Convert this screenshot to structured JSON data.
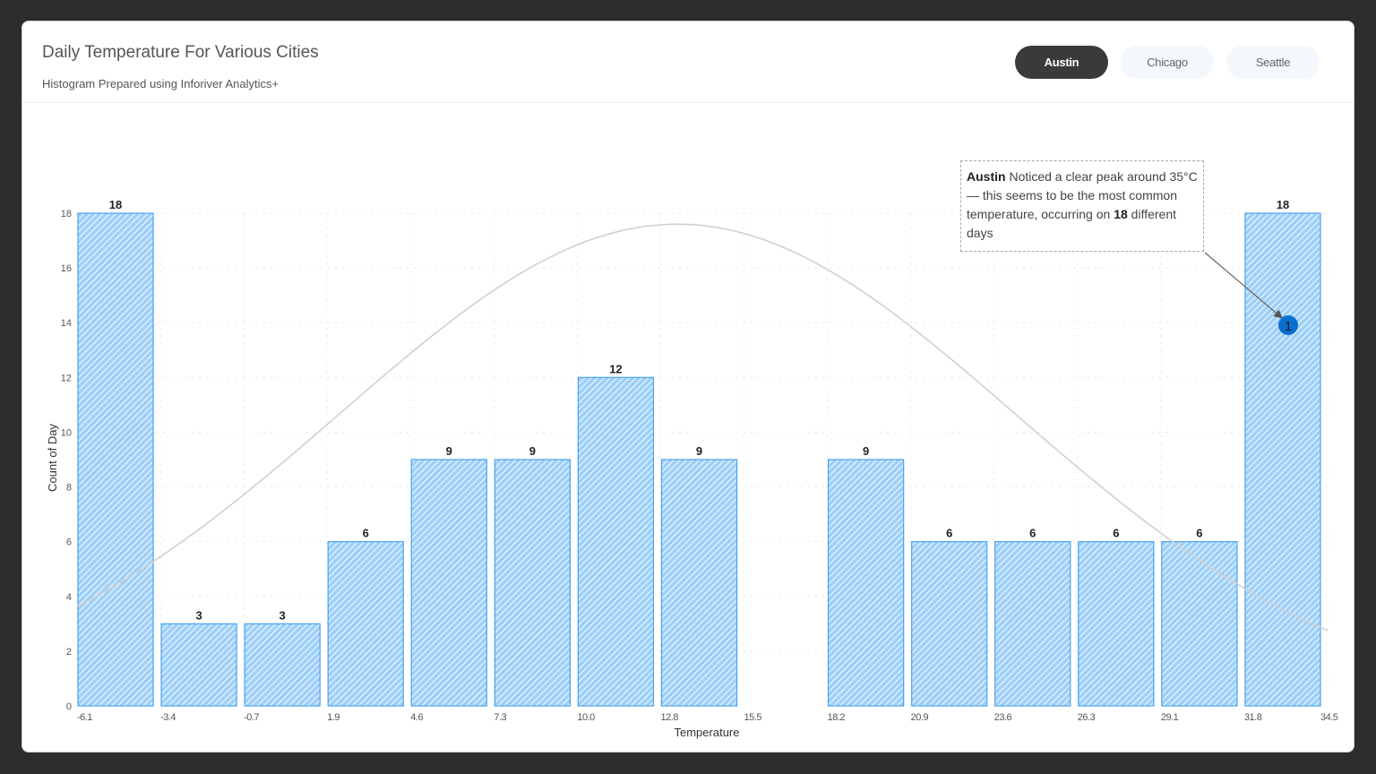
{
  "header": {
    "title": "Daily Temperature For Various Cities",
    "subtitle": "Histogram Prepared using Inforiver Analytics+"
  },
  "tabs": [
    {
      "label": "Austin",
      "active": true
    },
    {
      "label": "Chicago",
      "active": false
    },
    {
      "label": "Seattle",
      "active": false
    }
  ],
  "annotation": {
    "city": "Austin",
    "text_1": " Noticed a clear peak around 35°C— this seems to be the most common temperature, occurring on ",
    "count": "18",
    "text_2": " different days",
    "marker_label": "1"
  },
  "colors": {
    "bar_fill": "#9fd0f8",
    "bar_stripe": "#ffffff",
    "bar_border": "#4aa3f0",
    "curve": "#d0d0d0",
    "marker": "#0a6fd0",
    "active_tab": "#3a3a3a"
  },
  "chart_data": {
    "type": "bar",
    "title": "Daily Temperature For Various Cities",
    "subtitle": "Histogram Prepared using Inforiver Analytics+",
    "xlabel": "Temperature",
    "ylabel": "Count of Day",
    "ylim": [
      0,
      18
    ],
    "yticks": [
      0,
      2,
      4,
      6,
      8,
      10,
      12,
      14,
      16,
      18
    ],
    "bin_edges": [
      -6.1,
      -3.4,
      -0.7,
      1.9,
      4.6,
      7.3,
      10.0,
      12.8,
      15.5,
      18.2,
      20.9,
      23.6,
      26.3,
      29.1,
      31.8,
      34.5
    ],
    "tick_labels": [
      "-6.1",
      "-3.4",
      "-0.7",
      "1.9",
      "4.6",
      "7.3",
      "10.0",
      "12.8",
      "15.5",
      "18.2",
      "20.9",
      "23.6",
      "26.3",
      "29.1",
      "31.8",
      "34.5"
    ],
    "values": [
      18,
      3,
      3,
      6,
      9,
      9,
      12,
      9,
      0,
      9,
      6,
      6,
      6,
      6,
      18
    ],
    "overlay": "normal distribution curve",
    "grid": true,
    "legend": "none",
    "annotations": [
      "Austin Noticed a clear peak around 35°C— this seems to be the most common temperature, occurring on 18 different days"
    ]
  }
}
